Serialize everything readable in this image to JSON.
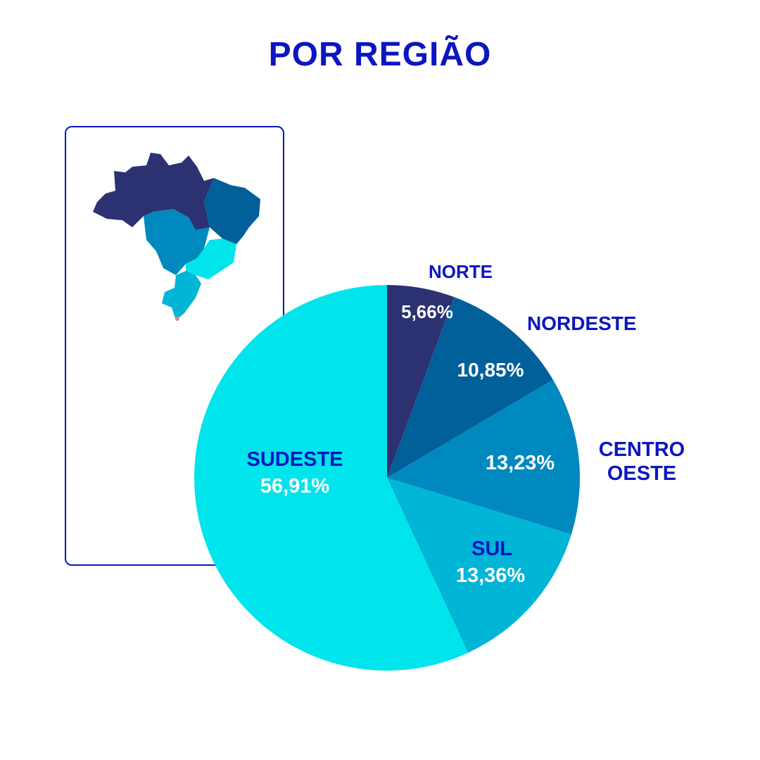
{
  "title": "POR REGIÃO",
  "map": {
    "icon": "brazil-regions-map-icon"
  },
  "chart_data": {
    "type": "pie",
    "title": "POR REGIÃO",
    "start_angle_deg": 0,
    "direction": "clockwise",
    "slices": [
      {
        "name": "NORTE",
        "value": 5.66,
        "value_label": "5,66%",
        "color": "#2b3171"
      },
      {
        "name": "NORDESTE",
        "value": 10.85,
        "value_label": "10,85%",
        "color": "#015f9a"
      },
      {
        "name": "CENTRO OESTE",
        "name_lines": [
          "CENTRO",
          "OESTE"
        ],
        "value": 13.23,
        "value_label": "13,23%",
        "color": "#0089be"
      },
      {
        "name": "SUL",
        "value": 13.36,
        "value_label": "13,36%",
        "color": "#00b5d6"
      },
      {
        "name": "SUDESTE",
        "value": 56.91,
        "value_label": "56,91%",
        "color": "#00e4ec"
      }
    ],
    "label_colors": {
      "name": "#0b16c0",
      "value": "#ffffff"
    }
  }
}
